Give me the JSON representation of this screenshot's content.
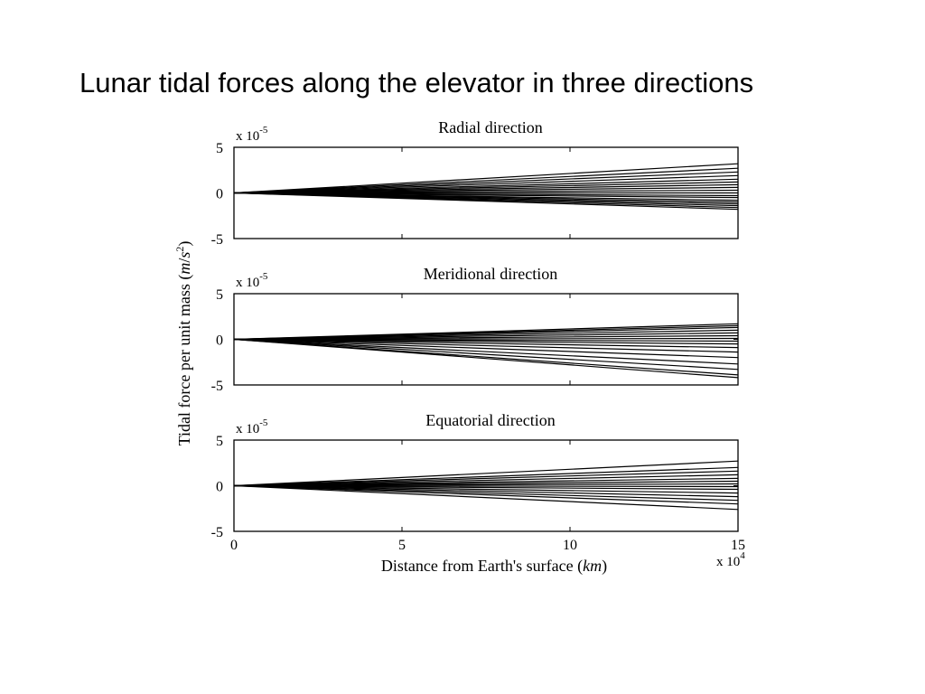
{
  "slide": {
    "title": "Lunar tidal forces along the elevator in three directions"
  },
  "figure": {
    "ylabel_prefix": "Tidal force per unit mass (",
    "ylabel_unit_m": "m",
    "ylabel_unit_slash": "/",
    "ylabel_unit_s": "s",
    "ylabel_unit_exp": "2",
    "ylabel_suffix": ")",
    "xlabel_prefix": "Distance from Earth's surface (",
    "xlabel_unit": "km",
    "xlabel_suffix": ")",
    "x_exponent_base": "x 10",
    "x_exponent_power": "4"
  },
  "chart_data": [
    {
      "type": "line",
      "title": "Radial direction",
      "y_exponent_base": "x 10",
      "y_exponent_power": "-5",
      "xlim": [
        0,
        15
      ],
      "ylim": [
        -5,
        5
      ],
      "xticks": [
        "0",
        "5",
        "10",
        "15"
      ],
      "yticks": [
        "5",
        "0",
        "-5"
      ],
      "show_x_tick_labels": false,
      "line_color": "#000000",
      "x": [
        0,
        15
      ],
      "series": [
        {
          "values": [
            0,
            3.2
          ]
        },
        {
          "values": [
            0,
            2.7
          ]
        },
        {
          "values": [
            0,
            2.3
          ]
        },
        {
          "values": [
            0,
            1.9
          ]
        },
        {
          "values": [
            0,
            1.5
          ]
        },
        {
          "values": [
            0,
            1.2
          ]
        },
        {
          "values": [
            0,
            0.9
          ]
        },
        {
          "values": [
            0,
            0.6
          ]
        },
        {
          "values": [
            0,
            0.3
          ]
        },
        {
          "values": [
            0,
            0.0
          ]
        },
        {
          "values": [
            0,
            -0.3
          ]
        },
        {
          "values": [
            0,
            -0.5
          ]
        },
        {
          "values": [
            0,
            -0.8
          ]
        },
        {
          "values": [
            0,
            -1.0
          ]
        },
        {
          "values": [
            0,
            -1.2
          ]
        },
        {
          "values": [
            0,
            -1.4
          ]
        },
        {
          "values": [
            0,
            -1.6
          ]
        },
        {
          "values": [
            0,
            -1.8
          ]
        }
      ]
    },
    {
      "type": "line",
      "title": "Meridional direction",
      "y_exponent_base": "x 10",
      "y_exponent_power": "-5",
      "xlim": [
        0,
        15
      ],
      "ylim": [
        -5,
        5
      ],
      "xticks": [
        "0",
        "5",
        "10",
        "15"
      ],
      "yticks": [
        "5",
        "0",
        "-5"
      ],
      "show_x_tick_labels": false,
      "line_color": "#000000",
      "x": [
        0,
        15
      ],
      "series": [
        {
          "values": [
            0,
            1.7
          ]
        },
        {
          "values": [
            0,
            1.5
          ]
        },
        {
          "values": [
            0,
            1.3
          ]
        },
        {
          "values": [
            0,
            1.0
          ]
        },
        {
          "values": [
            0,
            0.7
          ]
        },
        {
          "values": [
            0,
            0.4
          ]
        },
        {
          "values": [
            0,
            0.1
          ]
        },
        {
          "values": [
            0,
            -0.2
          ]
        },
        {
          "values": [
            0,
            -0.5
          ]
        },
        {
          "values": [
            0,
            -0.9
          ]
        },
        {
          "values": [
            0,
            -1.4
          ]
        },
        {
          "values": [
            0,
            -2.0
          ]
        },
        {
          "values": [
            0,
            -2.7
          ]
        },
        {
          "values": [
            0,
            -3.3
          ]
        },
        {
          "values": [
            0,
            -3.9
          ]
        },
        {
          "values": [
            0,
            -4.2
          ]
        }
      ]
    },
    {
      "type": "line",
      "title": "Equatorial direction",
      "y_exponent_base": "x 10",
      "y_exponent_power": "-5",
      "xlim": [
        0,
        15
      ],
      "ylim": [
        -5,
        5
      ],
      "xticks": [
        "0",
        "5",
        "10",
        "15"
      ],
      "yticks": [
        "5",
        "0",
        "-5"
      ],
      "show_x_tick_labels": true,
      "line_color": "#000000",
      "x": [
        0,
        15
      ],
      "series": [
        {
          "values": [
            0,
            2.7
          ]
        },
        {
          "values": [
            0,
            2.0
          ]
        },
        {
          "values": [
            0,
            1.6
          ]
        },
        {
          "values": [
            0,
            1.2
          ]
        },
        {
          "values": [
            0,
            0.8
          ]
        },
        {
          "values": [
            0,
            0.5
          ]
        },
        {
          "values": [
            0,
            0.2
          ]
        },
        {
          "values": [
            0,
            -0.1
          ]
        },
        {
          "values": [
            0,
            -0.4
          ]
        },
        {
          "values": [
            0,
            -0.8
          ]
        },
        {
          "values": [
            0,
            -1.2
          ]
        },
        {
          "values": [
            0,
            -1.6
          ]
        },
        {
          "values": [
            0,
            -2.0
          ]
        },
        {
          "values": [
            0,
            -2.6
          ]
        }
      ]
    }
  ]
}
